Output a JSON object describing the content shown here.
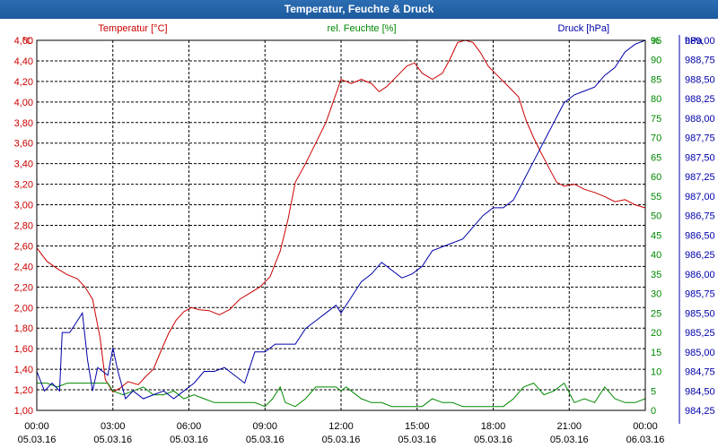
{
  "window": {
    "title": "Temperatur, Feuchte & Druck"
  },
  "colors": {
    "temperature": "#cc0000",
    "humidity": "#008800",
    "pressure": "#0000aa",
    "titlebar": "#1f5fa5",
    "grid": "#000000"
  },
  "chart_data": {
    "type": "line",
    "title": "Temperatur, Feuchte & Druck",
    "grid": true,
    "x": {
      "range_hours": [
        0,
        24
      ],
      "tick_hours": [
        0,
        3,
        6,
        9,
        12,
        15,
        18,
        21,
        24
      ],
      "tick_labels": [
        [
          "00:00",
          "05.03.16"
        ],
        [
          "03:00",
          "05.03.16"
        ],
        [
          "06:00",
          "05.03.16"
        ],
        [
          "09:00",
          "05.03.16"
        ],
        [
          "12:00",
          "05.03.16"
        ],
        [
          "15:00",
          "05.03.16"
        ],
        [
          "18:00",
          "05.03.16"
        ],
        [
          "21:00",
          "05.03.16"
        ],
        [
          "00:00",
          "06.03.16"
        ]
      ]
    },
    "axes": {
      "temperature": {
        "label": "Temperatur [°C]",
        "unit": "°C",
        "ylim": [
          1.0,
          4.6
        ],
        "ticks": [
          "1,00",
          "1,20",
          "1,40",
          "1,60",
          "1,80",
          "2,00",
          "2,20",
          "2,40",
          "2,60",
          "2,80",
          "3,00",
          "3,20",
          "3,40",
          "3,60",
          "3,80",
          "4,00",
          "4,20",
          "4,40",
          "4,60"
        ]
      },
      "humidity": {
        "label": "rel. Feuchte [%]",
        "unit": "%",
        "ylim": [
          0,
          95
        ],
        "ticks": [
          "0",
          "5",
          "10",
          "15",
          "20",
          "25",
          "30",
          "35",
          "40",
          "45",
          "50",
          "55",
          "60",
          "65",
          "70",
          "75",
          "80",
          "85",
          "90",
          "95"
        ]
      },
      "pressure": {
        "label": "Druck [hPa]",
        "unit": "hPa",
        "ylim": [
          984.25,
          989.0
        ],
        "ticks": [
          "984,25",
          "984,50",
          "984,75",
          "985,00",
          "985,25",
          "985,50",
          "985,75",
          "986,00",
          "986,25",
          "986,50",
          "986,75",
          "987,00",
          "987,25",
          "987,50",
          "987,75",
          "988,00",
          "988,25",
          "988,50",
          "988,75",
          "989,00"
        ]
      }
    },
    "series": [
      {
        "name": "Temperatur",
        "axis": "temperature",
        "color": "#cc0000",
        "points": [
          [
            0,
            2.58
          ],
          [
            0.4,
            2.45
          ],
          [
            0.8,
            2.38
          ],
          [
            1.2,
            2.32
          ],
          [
            1.6,
            2.28
          ],
          [
            1.9,
            2.2
          ],
          [
            2.2,
            2.08
          ],
          [
            2.5,
            1.7
          ],
          [
            2.7,
            1.3
          ],
          [
            3.0,
            1.18
          ],
          [
            3.3,
            1.22
          ],
          [
            3.6,
            1.28
          ],
          [
            4.0,
            1.25
          ],
          [
            4.3,
            1.33
          ],
          [
            4.6,
            1.4
          ],
          [
            4.9,
            1.58
          ],
          [
            5.2,
            1.75
          ],
          [
            5.5,
            1.88
          ],
          [
            5.8,
            1.96
          ],
          [
            6.1,
            2.0
          ],
          [
            6.4,
            1.98
          ],
          [
            6.8,
            1.97
          ],
          [
            7.2,
            1.93
          ],
          [
            7.6,
            1.98
          ],
          [
            8.0,
            2.08
          ],
          [
            8.4,
            2.14
          ],
          [
            8.8,
            2.2
          ],
          [
            9.2,
            2.3
          ],
          [
            9.6,
            2.55
          ],
          [
            9.9,
            2.85
          ],
          [
            10.2,
            3.22
          ],
          [
            10.6,
            3.4
          ],
          [
            11.0,
            3.6
          ],
          [
            11.4,
            3.8
          ],
          [
            11.8,
            4.08
          ],
          [
            12.0,
            4.22
          ],
          [
            12.4,
            4.18
          ],
          [
            12.8,
            4.22
          ],
          [
            13.2,
            4.18
          ],
          [
            13.5,
            4.1
          ],
          [
            13.8,
            4.15
          ],
          [
            14.2,
            4.25
          ],
          [
            14.6,
            4.35
          ],
          [
            14.9,
            4.38
          ],
          [
            15.2,
            4.28
          ],
          [
            15.6,
            4.22
          ],
          [
            16.0,
            4.28
          ],
          [
            16.3,
            4.42
          ],
          [
            16.6,
            4.58
          ],
          [
            16.9,
            4.6
          ],
          [
            17.2,
            4.58
          ],
          [
            17.5,
            4.48
          ],
          [
            17.8,
            4.35
          ],
          [
            18.2,
            4.25
          ],
          [
            18.6,
            4.15
          ],
          [
            19.0,
            4.05
          ],
          [
            19.3,
            3.82
          ],
          [
            19.6,
            3.65
          ],
          [
            19.9,
            3.5
          ],
          [
            20.2,
            3.36
          ],
          [
            20.5,
            3.22
          ],
          [
            20.8,
            3.18
          ],
          [
            21.2,
            3.2
          ],
          [
            21.6,
            3.15
          ],
          [
            22.0,
            3.12
          ],
          [
            22.4,
            3.08
          ],
          [
            22.8,
            3.03
          ],
          [
            23.2,
            3.05
          ],
          [
            23.6,
            3.0
          ],
          [
            24.0,
            2.97
          ]
        ]
      },
      {
        "name": "rel. Feuchte",
        "axis": "humidity",
        "color": "#008800",
        "points": [
          [
            0,
            7
          ],
          [
            0.4,
            7
          ],
          [
            0.8,
            6
          ],
          [
            1.2,
            7
          ],
          [
            1.6,
            7
          ],
          [
            2.0,
            7
          ],
          [
            2.4,
            7
          ],
          [
            2.8,
            7
          ],
          [
            3.0,
            5
          ],
          [
            3.4,
            4
          ],
          [
            3.8,
            5
          ],
          [
            4.2,
            6
          ],
          [
            4.6,
            4
          ],
          [
            5.0,
            4
          ],
          [
            5.4,
            5
          ],
          [
            5.8,
            3
          ],
          [
            6.2,
            4
          ],
          [
            6.6,
            3
          ],
          [
            7.0,
            2
          ],
          [
            7.4,
            2
          ],
          [
            7.8,
            2
          ],
          [
            8.2,
            2
          ],
          [
            8.6,
            2
          ],
          [
            9.0,
            1
          ],
          [
            9.3,
            3
          ],
          [
            9.6,
            6
          ],
          [
            9.8,
            2
          ],
          [
            10.2,
            1
          ],
          [
            10.6,
            3
          ],
          [
            11.0,
            6
          ],
          [
            11.4,
            6
          ],
          [
            11.8,
            6
          ],
          [
            12.0,
            5
          ],
          [
            12.2,
            6
          ],
          [
            12.4,
            5
          ],
          [
            12.8,
            3
          ],
          [
            13.2,
            2
          ],
          [
            13.6,
            2
          ],
          [
            14.0,
            1
          ],
          [
            14.4,
            1
          ],
          [
            14.8,
            1
          ],
          [
            15.2,
            1
          ],
          [
            15.6,
            3
          ],
          [
            16.0,
            2
          ],
          [
            16.4,
            2
          ],
          [
            16.8,
            1
          ],
          [
            17.2,
            1
          ],
          [
            17.6,
            1
          ],
          [
            18.0,
            1
          ],
          [
            18.4,
            1
          ],
          [
            18.8,
            3
          ],
          [
            19.2,
            6
          ],
          [
            19.6,
            7
          ],
          [
            20.0,
            4
          ],
          [
            20.4,
            5
          ],
          [
            20.8,
            7
          ],
          [
            21.2,
            2
          ],
          [
            21.6,
            3
          ],
          [
            22.0,
            2
          ],
          [
            22.4,
            6
          ],
          [
            22.8,
            3
          ],
          [
            23.2,
            2
          ],
          [
            23.6,
            2
          ],
          [
            24.0,
            3
          ]
        ]
      },
      {
        "name": "Druck",
        "axis": "pressure",
        "color": "#0000aa",
        "points": [
          [
            0,
            984.75
          ],
          [
            0.3,
            984.5
          ],
          [
            0.6,
            984.6
          ],
          [
            0.9,
            984.5
          ],
          [
            1.0,
            985.25
          ],
          [
            1.3,
            985.25
          ],
          [
            1.6,
            985.4
          ],
          [
            1.8,
            985.5
          ],
          [
            2.0,
            984.9
          ],
          [
            2.2,
            984.5
          ],
          [
            2.4,
            984.8
          ],
          [
            2.8,
            984.7
          ],
          [
            3.0,
            985.05
          ],
          [
            3.2,
            984.75
          ],
          [
            3.5,
            984.4
          ],
          [
            3.8,
            984.5
          ],
          [
            4.2,
            984.4
          ],
          [
            4.6,
            984.45
          ],
          [
            5.0,
            984.5
          ],
          [
            5.4,
            984.4
          ],
          [
            5.8,
            984.5
          ],
          [
            6.2,
            984.6
          ],
          [
            6.6,
            984.75
          ],
          [
            7.0,
            984.75
          ],
          [
            7.4,
            984.8
          ],
          [
            7.8,
            984.7
          ],
          [
            8.2,
            984.6
          ],
          [
            8.6,
            985.0
          ],
          [
            9.0,
            985.0
          ],
          [
            9.4,
            985.1
          ],
          [
            9.8,
            985.1
          ],
          [
            10.2,
            985.1
          ],
          [
            10.6,
            985.3
          ],
          [
            11.0,
            985.4
          ],
          [
            11.4,
            985.5
          ],
          [
            11.8,
            985.6
          ],
          [
            12.0,
            985.5
          ],
          [
            12.4,
            985.7
          ],
          [
            12.8,
            985.9
          ],
          [
            13.2,
            986.0
          ],
          [
            13.6,
            986.15
          ],
          [
            14.0,
            986.05
          ],
          [
            14.4,
            985.95
          ],
          [
            14.8,
            986.0
          ],
          [
            15.2,
            986.1
          ],
          [
            15.6,
            986.3
          ],
          [
            16.0,
            986.35
          ],
          [
            16.4,
            986.4
          ],
          [
            16.8,
            986.45
          ],
          [
            17.2,
            986.6
          ],
          [
            17.6,
            986.75
          ],
          [
            18.0,
            986.85
          ],
          [
            18.4,
            986.85
          ],
          [
            18.8,
            986.95
          ],
          [
            19.2,
            987.2
          ],
          [
            19.6,
            987.45
          ],
          [
            20.0,
            987.7
          ],
          [
            20.4,
            987.95
          ],
          [
            20.8,
            988.2
          ],
          [
            21.2,
            988.3
          ],
          [
            21.6,
            988.35
          ],
          [
            22.0,
            988.4
          ],
          [
            22.4,
            988.55
          ],
          [
            22.8,
            988.65
          ],
          [
            23.2,
            988.85
          ],
          [
            23.6,
            988.95
          ],
          [
            24.0,
            989.0
          ]
        ]
      }
    ]
  }
}
